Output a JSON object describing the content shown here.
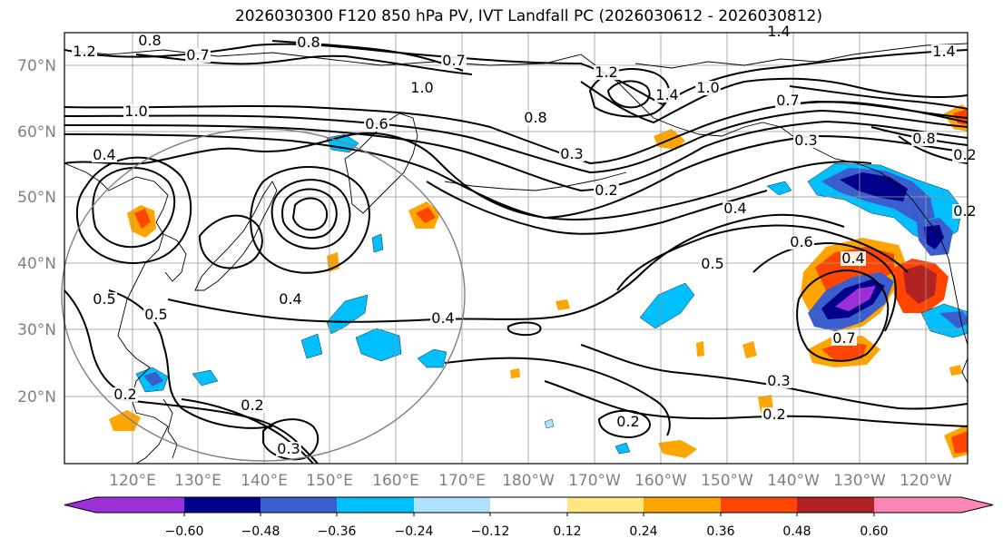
{
  "title": "2026030300 F120 850 hPa PV, IVT Landfall PC (2026030612 - 2026030812)",
  "lat_labels": [
    "70°N",
    "60°N",
    "50°N",
    "40°N",
    "30°N",
    "20°N"
  ],
  "lon_labels": [
    "120°E",
    "130°E",
    "140°E",
    "150°E",
    "160°E",
    "170°E",
    "180°W",
    "170°W",
    "160°W",
    "150°W",
    "140°W",
    "130°W",
    "120°W"
  ],
  "colorbar": {
    "ticks": [
      "−0.60",
      "−0.48",
      "−0.36",
      "−0.24",
      "−0.12",
      "0.12",
      "0.24",
      "0.36",
      "0.48",
      "0.60"
    ],
    "colors": [
      "#9b30d9",
      "#00008b",
      "#3a5fcd",
      "#00bfff",
      "#b0e2ff",
      "#ffffff",
      "#ffe680",
      "#ffa500",
      "#ff4500",
      "#b22222",
      "#ff85b4"
    ]
  },
  "contour_labels": [
    "1.2",
    "0.8",
    "0.7",
    "0.8",
    "0.7",
    "1.4",
    "1.4",
    "1.0",
    "1.0",
    "0.8",
    "0.6",
    "0.3",
    "1.2",
    "1.4",
    "1.0",
    "0.7",
    "0.3",
    "0.4",
    "0.2",
    "0.4",
    "0.2",
    "0.8",
    "0.4",
    "0.5",
    "0.6",
    "0.4",
    "0.5",
    "0.5",
    "0.7",
    "0.4",
    "0.2",
    "0.2",
    "0.3",
    "0.2",
    "0.3",
    "0.2",
    "0.2"
  ]
}
